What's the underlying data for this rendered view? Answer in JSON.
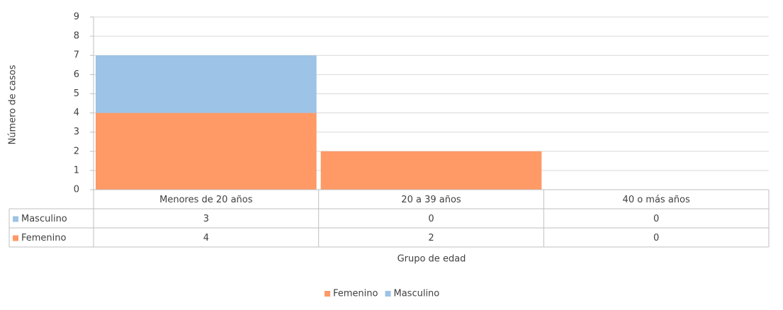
{
  "chart_data": {
    "type": "stacked_bar",
    "categories": [
      "Menores de 20 años",
      "20 a 39 años",
      "40 o más años"
    ],
    "series": [
      {
        "name": "Femenino",
        "color": "#ff9966",
        "values": [
          4,
          2,
          0
        ]
      },
      {
        "name": "Masculino",
        "color": "#9dc3e6",
        "values": [
          3,
          0,
          0
        ]
      }
    ],
    "y_label": "Número de casos",
    "x_label": "Grupo de edad",
    "ylim": [
      0,
      9
    ],
    "yticks": [
      0,
      1,
      2,
      3,
      4,
      5,
      6,
      7,
      8,
      9
    ],
    "grid": true,
    "legend": "bottom",
    "data_table": true
  }
}
